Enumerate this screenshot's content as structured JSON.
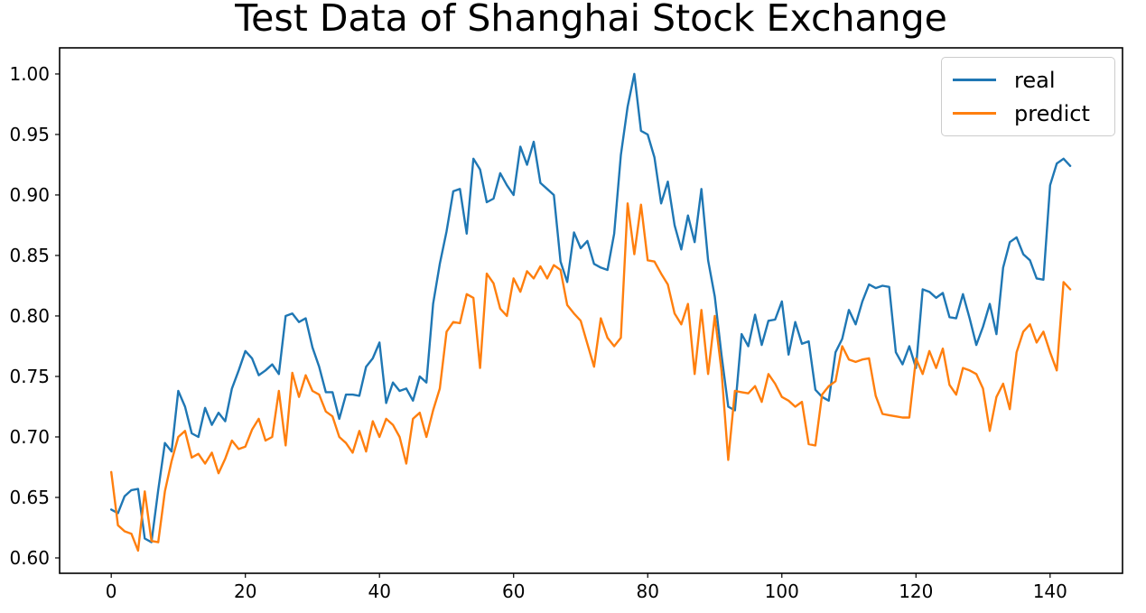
{
  "chart_data": {
    "type": "line",
    "title": "Test Data of Shanghai Stock Exchange",
    "xlabel": "",
    "ylabel": "",
    "grid": false,
    "legend_position": "upper right",
    "xlim": [
      -7.7,
      150.8
    ],
    "ylim": [
      0.5873,
      1.0216
    ],
    "x_ticks": [
      0,
      20,
      40,
      60,
      80,
      100,
      120,
      140
    ],
    "x_tick_labels": [
      "0",
      "20",
      "40",
      "60",
      "80",
      "100",
      "120",
      "140"
    ],
    "y_ticks": [
      0.6,
      0.65,
      0.7,
      0.75,
      0.8,
      0.85,
      0.9,
      0.95,
      1.0
    ],
    "y_tick_labels": [
      "0.60",
      "0.65",
      "0.70",
      "0.75",
      "0.80",
      "0.85",
      "0.90",
      "0.95",
      "1.00"
    ],
    "series": [
      {
        "name": "real",
        "color": "#1f77b4",
        "values": [
          0.64,
          0.637,
          0.651,
          0.656,
          0.657,
          0.616,
          0.613,
          0.656,
          0.695,
          0.688,
          0.738,
          0.725,
          0.703,
          0.7,
          0.724,
          0.71,
          0.72,
          0.713,
          0.74,
          0.755,
          0.771,
          0.765,
          0.751,
          0.755,
          0.76,
          0.752,
          0.8,
          0.802,
          0.795,
          0.798,
          0.774,
          0.758,
          0.737,
          0.737,
          0.715,
          0.735,
          0.735,
          0.734,
          0.758,
          0.765,
          0.778,
          0.728,
          0.745,
          0.738,
          0.74,
          0.73,
          0.75,
          0.745,
          0.81,
          0.843,
          0.87,
          0.903,
          0.905,
          0.868,
          0.93,
          0.921,
          0.894,
          0.897,
          0.918,
          0.908,
          0.9,
          0.94,
          0.925,
          0.944,
          0.91,
          0.905,
          0.9,
          0.845,
          0.828,
          0.869,
          0.856,
          0.862,
          0.843,
          0.84,
          0.838,
          0.868,
          0.933,
          0.973,
          1.0,
          0.953,
          0.95,
          0.931,
          0.893,
          0.911,
          0.875,
          0.855,
          0.883,
          0.861,
          0.905,
          0.846,
          0.816,
          0.768,
          0.725,
          0.722,
          0.785,
          0.775,
          0.801,
          0.776,
          0.796,
          0.797,
          0.812,
          0.768,
          0.795,
          0.777,
          0.779,
          0.739,
          0.733,
          0.73,
          0.77,
          0.781,
          0.805,
          0.793,
          0.812,
          0.826,
          0.823,
          0.825,
          0.824,
          0.77,
          0.76,
          0.775,
          0.757,
          0.822,
          0.82,
          0.815,
          0.819,
          0.799,
          0.798,
          0.818,
          0.798,
          0.776,
          0.791,
          0.81,
          0.785,
          0.84,
          0.861,
          0.865,
          0.851,
          0.846,
          0.831,
          0.83,
          0.908,
          0.926,
          0.93,
          0.924
        ]
      },
      {
        "name": "predict",
        "color": "#ff7f0e",
        "values": [
          0.671,
          0.627,
          0.622,
          0.62,
          0.606,
          0.655,
          0.614,
          0.613,
          0.655,
          0.68,
          0.7,
          0.705,
          0.683,
          0.686,
          0.678,
          0.687,
          0.67,
          0.682,
          0.697,
          0.69,
          0.692,
          0.706,
          0.715,
          0.697,
          0.7,
          0.738,
          0.693,
          0.753,
          0.733,
          0.751,
          0.738,
          0.735,
          0.721,
          0.717,
          0.7,
          0.695,
          0.687,
          0.705,
          0.688,
          0.713,
          0.7,
          0.715,
          0.71,
          0.7,
          0.678,
          0.715,
          0.72,
          0.7,
          0.722,
          0.74,
          0.787,
          0.795,
          0.794,
          0.818,
          0.815,
          0.757,
          0.835,
          0.827,
          0.806,
          0.8,
          0.831,
          0.82,
          0.837,
          0.831,
          0.841,
          0.831,
          0.842,
          0.838,
          0.809,
          0.802,
          0.796,
          0.777,
          0.758,
          0.798,
          0.782,
          0.775,
          0.782,
          0.893,
          0.851,
          0.892,
          0.846,
          0.845,
          0.835,
          0.826,
          0.802,
          0.793,
          0.81,
          0.752,
          0.805,
          0.752,
          0.8,
          0.755,
          0.681,
          0.738,
          0.737,
          0.736,
          0.742,
          0.729,
          0.752,
          0.744,
          0.733,
          0.73,
          0.725,
          0.729,
          0.694,
          0.693,
          0.735,
          0.742,
          0.746,
          0.775,
          0.764,
          0.762,
          0.764,
          0.765,
          0.734,
          0.719,
          0.718,
          0.717,
          0.716,
          0.716,
          0.765,
          0.752,
          0.771,
          0.757,
          0.773,
          0.743,
          0.735,
          0.757,
          0.755,
          0.752,
          0.74,
          0.705,
          0.733,
          0.744,
          0.723,
          0.77,
          0.787,
          0.793,
          0.778,
          0.787,
          0.77,
          0.755,
          0.828,
          0.822
        ]
      }
    ]
  }
}
